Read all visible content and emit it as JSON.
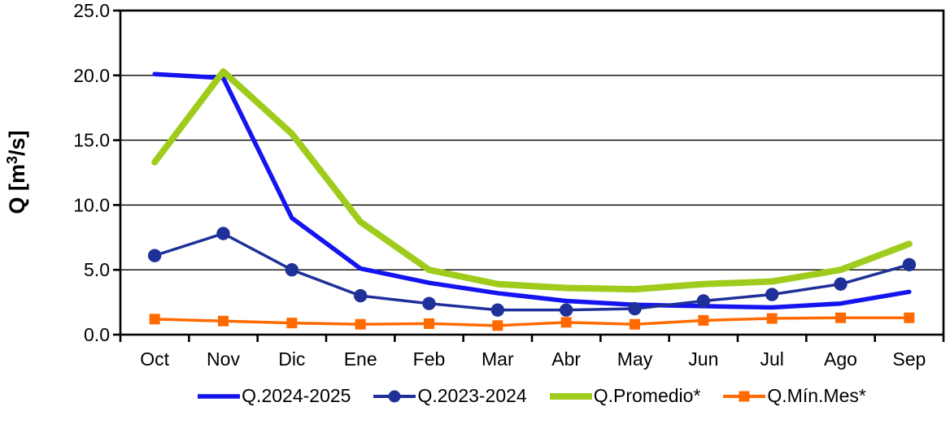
{
  "chart_data": {
    "type": "line",
    "title": "",
    "ylabel": "Q [m³/s]",
    "ylabel_parts": {
      "prefix": "Q [m",
      "sup": "3",
      "suffix": "/s]"
    },
    "xlabel": "",
    "categories": [
      "Oct",
      "Nov",
      "Dic",
      "Ene",
      "Feb",
      "Mar",
      "Abr",
      "May",
      "Jun",
      "Jul",
      "Ago",
      "Sep"
    ],
    "y_ticks": [
      "0.0",
      "5.0",
      "10.0",
      "15.0",
      "20.0",
      "25.0"
    ],
    "ylim": [
      0,
      25
    ],
    "grid": true,
    "legend_position": "bottom",
    "axis_color": "#000000",
    "background_color": "#FFFFFF",
    "series": [
      {
        "name": "Q.2024-2025",
        "color": "#1414F0",
        "marker": "none",
        "values": [
          20.1,
          19.8,
          9.0,
          5.1,
          4.0,
          3.2,
          2.6,
          2.3,
          2.2,
          2.1,
          2.4,
          3.3
        ]
      },
      {
        "name": "Q.2023-2024",
        "color": "#1F3099",
        "marker": "circle",
        "values": [
          6.1,
          7.8,
          5.0,
          3.0,
          2.4,
          1.9,
          1.9,
          2.0,
          2.6,
          3.1,
          3.9,
          5.4
        ]
      },
      {
        "name": "Q.Promedio*",
        "color": "#9FCC1C",
        "marker": "none",
        "values": [
          13.3,
          20.3,
          15.5,
          8.7,
          5.0,
          3.9,
          3.6,
          3.5,
          3.9,
          4.1,
          5.0,
          7.0
        ]
      },
      {
        "name": "Q.Mín.Mes*",
        "color": "#FF6A00",
        "marker": "square",
        "values": [
          1.2,
          1.05,
          0.9,
          0.8,
          0.85,
          0.7,
          0.95,
          0.8,
          1.1,
          1.25,
          1.3,
          1.3
        ]
      }
    ]
  }
}
